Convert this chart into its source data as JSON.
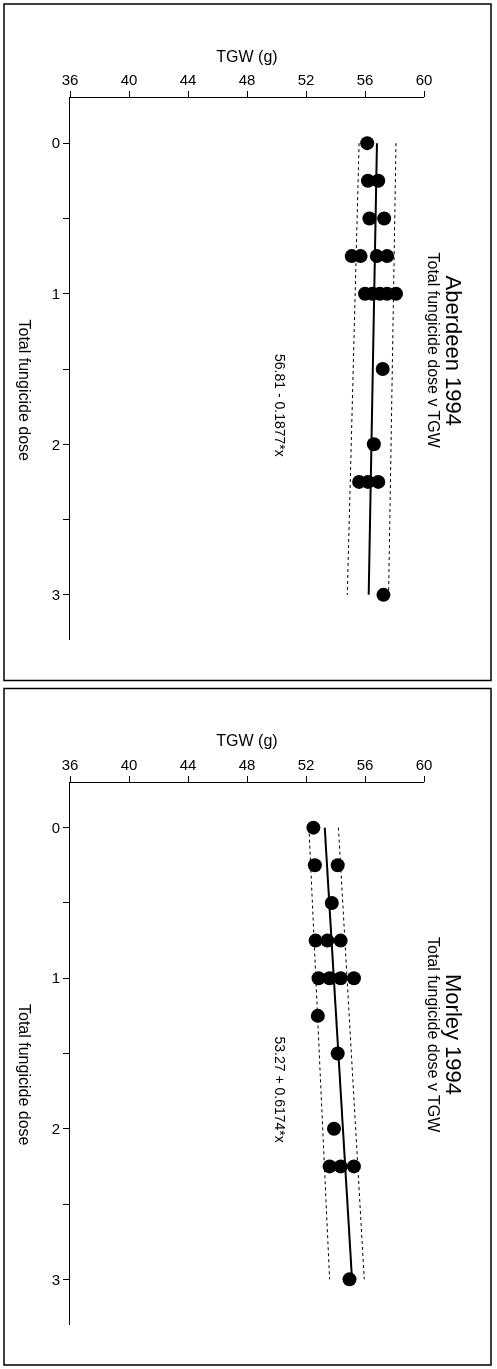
{
  "chart_data": [
    {
      "type": "scatter",
      "title": "Aberdeen 1994",
      "subtitle": "Total fungicide dose v TGW",
      "xlabel": "TGW (g)",
      "ylabel": "Total fungicide dose",
      "annotations": [
        "56.81 - 0.1877*x"
      ],
      "xlim": [
        36,
        60
      ],
      "xticks": [
        36,
        40,
        44,
        48,
        52,
        56,
        60
      ],
      "ylim": [
        3.3,
        -0.3
      ],
      "yticks": [
        0,
        {
          "value": 0.5,
          "label": null
        },
        1,
        {
          "value": 1.5,
          "label": null
        },
        2,
        {
          "value": 2.5,
          "label": null
        },
        3
      ],
      "series": [
        {
          "type": "scatter",
          "marker": "circle",
          "color": "#000000",
          "x": [
            56.15,
            56.2,
            56.9,
            56.3,
            57.3,
            55.1,
            55.7,
            56.8,
            57.5,
            56.0,
            56.5,
            57.0,
            57.5,
            58.1,
            57.2,
            56.6,
            55.6,
            56.2,
            56.9,
            57.25
          ],
          "values": [
            0,
            0.25,
            0.25,
            0.5,
            0.5,
            0.75,
            0.75,
            0.75,
            0.75,
            1,
            1,
            1,
            1,
            1,
            1.5,
            2,
            2.25,
            2.25,
            2.25,
            3
          ]
        },
        {
          "type": "line",
          "color": "#000000",
          "line_style": "solid",
          "x": [
            56.81,
            56.25
          ],
          "values": [
            0,
            3
          ]
        },
        {
          "type": "line",
          "color": "#000000",
          "line_style": "dotted",
          "x": [
            55.6,
            54.8
          ],
          "values": [
            0,
            3
          ]
        },
        {
          "type": "line",
          "color": "#000000",
          "line_style": "dotted",
          "x": [
            58.1,
            57.6
          ],
          "values": [
            0,
            3
          ]
        }
      ]
    },
    {
      "type": "scatter",
      "title": "Morley 1994",
      "subtitle": "Total fungicide dose v TGW",
      "xlabel": "TGW (g)",
      "ylabel": "Total fungicide dose",
      "annotations": [
        "53.27 + 0.6174*x"
      ],
      "xlim": [
        36,
        60
      ],
      "xticks": [
        36,
        40,
        44,
        48,
        52,
        56,
        60
      ],
      "ylim": [
        3.3,
        -0.3
      ],
      "yticks": [
        0,
        {
          "value": 0.5,
          "label": null
        },
        1,
        {
          "value": 1.5,
          "label": null
        },
        2,
        {
          "value": 2.5,
          "label": null
        },
        3
      ],
      "series": [
        {
          "type": "scatter",
          "marker": "circle",
          "color": "#000000",
          "x": [
            52.5,
            52.6,
            54.15,
            53.75,
            52.65,
            53.45,
            54.35,
            52.85,
            53.6,
            54.35,
            55.25,
            52.8,
            54.15,
            53.9,
            53.6,
            54.35,
            55.25,
            54.95
          ],
          "values": [
            0,
            0.25,
            0.25,
            0.5,
            0.75,
            0.75,
            0.75,
            1,
            1,
            1,
            1,
            1.25,
            1.5,
            2,
            2.25,
            2.25,
            2.25,
            3
          ]
        },
        {
          "type": "line",
          "color": "#000000",
          "line_style": "solid",
          "x": [
            53.27,
            55.12
          ],
          "values": [
            0,
            3
          ]
        },
        {
          "type": "line",
          "color": "#000000",
          "line_style": "dotted",
          "x": [
            52.2,
            53.6
          ],
          "values": [
            0,
            3
          ]
        },
        {
          "type": "line",
          "color": "#000000",
          "line_style": "dotted",
          "x": [
            54.2,
            55.95
          ],
          "values": [
            0,
            3
          ]
        }
      ]
    }
  ]
}
